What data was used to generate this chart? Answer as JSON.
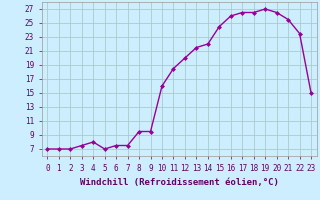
{
  "x": [
    0,
    1,
    2,
    3,
    4,
    5,
    6,
    7,
    8,
    9,
    10,
    11,
    12,
    13,
    14,
    15,
    16,
    17,
    18,
    19,
    20,
    21,
    22,
    23
  ],
  "y": [
    7,
    7,
    7,
    7.5,
    8,
    7,
    7.5,
    7.5,
    9.5,
    9.5,
    16,
    18.5,
    20,
    21.5,
    22,
    24.5,
    26,
    26.5,
    26.5,
    27,
    26.5,
    25.5,
    23.5,
    15
  ],
  "line_color": "#990099",
  "marker": "D",
  "marker_size": 2.0,
  "linewidth": 1.0,
  "background_color": "#cceeff",
  "grid_color": "#aacccc",
  "xlabel": "Windchill (Refroidissement éolien,°C)",
  "xlabel_fontsize": 6.5,
  "yticks": [
    7,
    9,
    11,
    13,
    15,
    17,
    19,
    21,
    23,
    25,
    27
  ],
  "xlim": [
    -0.5,
    23.5
  ],
  "ylim": [
    6.0,
    28.0
  ],
  "xticks": [
    0,
    1,
    2,
    3,
    4,
    5,
    6,
    7,
    8,
    9,
    10,
    11,
    12,
    13,
    14,
    15,
    16,
    17,
    18,
    19,
    20,
    21,
    22,
    23
  ],
  "tick_fontsize": 5.5
}
